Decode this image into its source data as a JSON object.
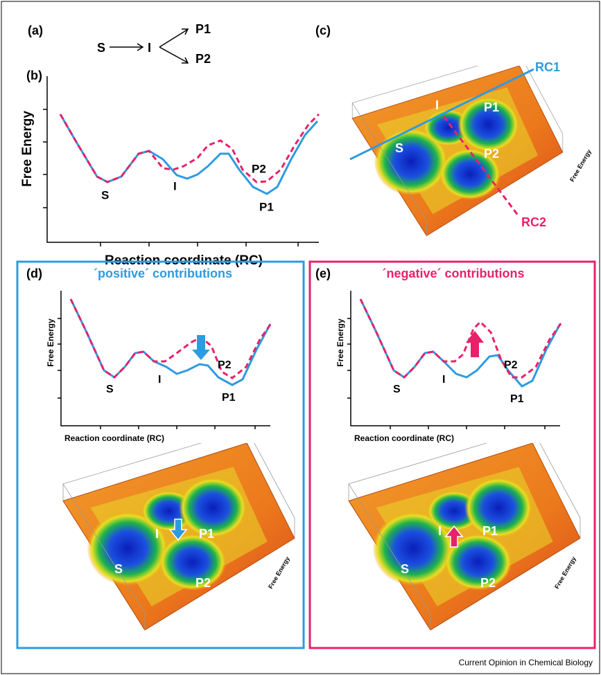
{
  "scheme": {
    "label": "(a)",
    "S": "S",
    "I": "I",
    "P1": "P1",
    "P2": "P2"
  },
  "profile": {
    "label": "(b)",
    "y_axis": "Free Energy",
    "x_axis": "Reaction coordinate (RC)",
    "S": "S",
    "I": "I",
    "P2": "P2",
    "P1": "P1"
  },
  "landscape": {
    "label": "(c)",
    "rc1": "RC1",
    "rc2": "RC2",
    "I": "I",
    "P1": "P1",
    "S": "S",
    "P2": "P2",
    "z_axis": "Free Energy"
  },
  "positive": {
    "label": "(d)",
    "title": "´positive´ contributions",
    "y_axis": "Free Energy",
    "x_axis": "Reaction coordinate (RC)",
    "S": "S",
    "I": "I",
    "P2": "P2",
    "P1": "P1",
    "surface": {
      "I": "I",
      "P1": "P1",
      "S": "S",
      "P2": "P2",
      "z_axis": "Free Energy"
    }
  },
  "negative": {
    "label": "(e)",
    "title": "´negative´ contributions",
    "y_axis": "Free Energy",
    "x_axis": "Reaction coordinate (RC)",
    "S": "S",
    "I": "I",
    "P2": "P2",
    "P1": "P1",
    "surface": {
      "I": "I",
      "P1": "P1",
      "S": "S",
      "P2": "P2",
      "z_axis": "Free Energy"
    }
  },
  "credit": "Current Opinion in Chemical Biology"
}
